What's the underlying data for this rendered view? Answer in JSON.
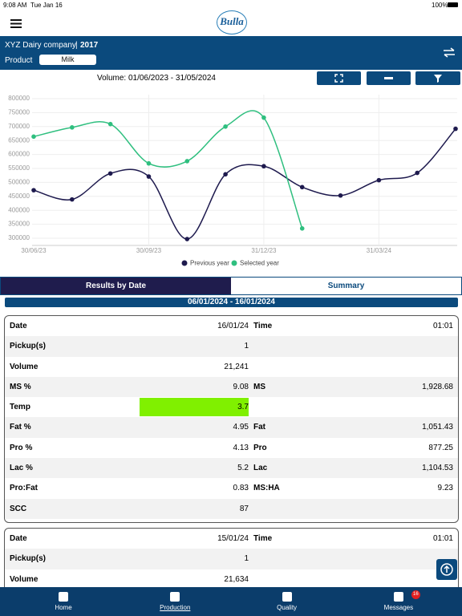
{
  "status": {
    "time": "9:08 AM",
    "date": "Tue Jan 16",
    "battery": "100%"
  },
  "header": {
    "logo": "Bulla"
  },
  "company": {
    "name": "XYZ Dairy company",
    "year": "2017",
    "product_label": "Product",
    "product": "Milk"
  },
  "volume_title": "Volume: 01/06/2023 - 31/05/2024",
  "chart_data": {
    "type": "line",
    "categories": [
      "30/06/23",
      null,
      null,
      "30/09/23",
      null,
      null,
      "31/12/23",
      null,
      null,
      "31/03/24",
      null,
      null
    ],
    "series": [
      {
        "name": "Previous year",
        "color": "#1e1a4e",
        "values": [
          472000,
          439000,
          532000,
          521000,
          297000,
          529000,
          558000,
          483000,
          453000,
          508000,
          534000,
          692000
        ]
      },
      {
        "name": "Selected year",
        "color": "#2fbf7f",
        "values": [
          664000,
          697000,
          709000,
          568000,
          576000,
          700000,
          732000,
          335000,
          null,
          null,
          null,
          null
        ]
      }
    ],
    "ylim": [
      300000,
      800000
    ],
    "yticks": [
      300000,
      350000,
      400000,
      450000,
      500000,
      550000,
      600000,
      650000,
      700000,
      750000,
      800000
    ],
    "grid": true,
    "legend": "bottom"
  },
  "tabs": [
    "Results by Date",
    "Summary"
  ],
  "range": "06/01/2024 - 16/01/2024",
  "records": [
    {
      "rows": [
        {
          "label": "Date",
          "value": "16/01/24",
          "label2": "Time",
          "value2": "01:01"
        },
        {
          "label": "Pickup(s)",
          "value": "1"
        },
        {
          "label": "Volume",
          "value": "21,241"
        },
        {
          "label": "MS %",
          "value": "9.08",
          "label2": "MS",
          "value2": "1,928.68"
        },
        {
          "label": "Temp",
          "value": "3.7",
          "highlight": "#80f000"
        },
        {
          "label": "Fat %",
          "value": "4.95",
          "label2": "Fat",
          "value2": "1,051.43"
        },
        {
          "label": "Pro %",
          "value": "4.13",
          "label2": "Pro",
          "value2": "877.25"
        },
        {
          "label": "Lac %",
          "value": "5.2",
          "label2": "Lac",
          "value2": "1,104.53"
        },
        {
          "label": "Pro:Fat",
          "value": "0.83",
          "label2": "MS:HA",
          "value2": "9.23"
        },
        {
          "label": "SCC",
          "value": "87"
        }
      ]
    },
    {
      "rows": [
        {
          "label": "Date",
          "value": "15/01/24",
          "label2": "Time",
          "value2": "01:01"
        },
        {
          "label": "Pickup(s)",
          "value": "1"
        },
        {
          "label": "Volume",
          "value": "21,634"
        }
      ]
    }
  ],
  "nav": [
    {
      "label": "Home"
    },
    {
      "label": "Production"
    },
    {
      "label": "Quality"
    },
    {
      "label": "Messages",
      "badge": "16"
    }
  ]
}
